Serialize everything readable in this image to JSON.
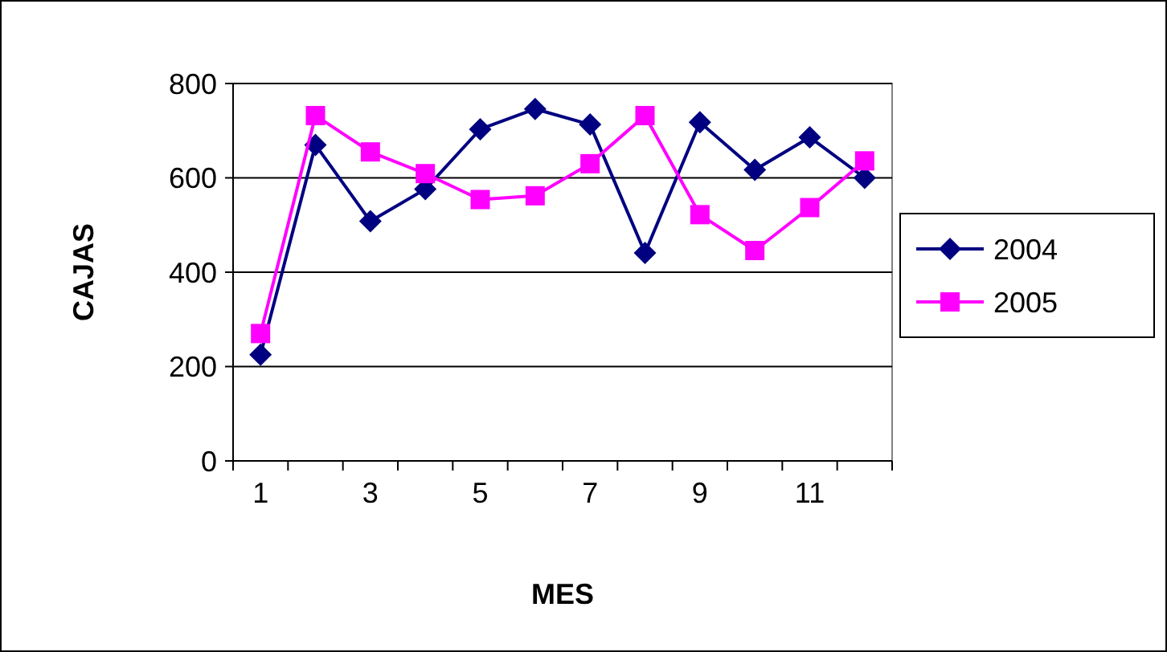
{
  "chart_data": {
    "type": "line",
    "xlabel": "MES",
    "ylabel": "CAJAS",
    "categories": [
      "1",
      null,
      "3",
      null,
      "5",
      null,
      "7",
      null,
      "9",
      null,
      "11",
      null
    ],
    "series": [
      {
        "name": "2004",
        "color": "#000080",
        "marker": "diamond",
        "values": [
          225,
          670,
          508,
          576,
          703,
          746,
          713,
          441,
          718,
          617,
          686,
          600
        ]
      },
      {
        "name": "2005",
        "color": "#ff00ff",
        "marker": "square",
        "values": [
          270,
          732,
          655,
          609,
          554,
          562,
          630,
          732,
          522,
          446,
          537,
          636
        ]
      }
    ],
    "ylim": [
      0,
      800
    ],
    "yticks": [
      0,
      200,
      400,
      600,
      800
    ],
    "grid": "y",
    "legend": "right"
  }
}
